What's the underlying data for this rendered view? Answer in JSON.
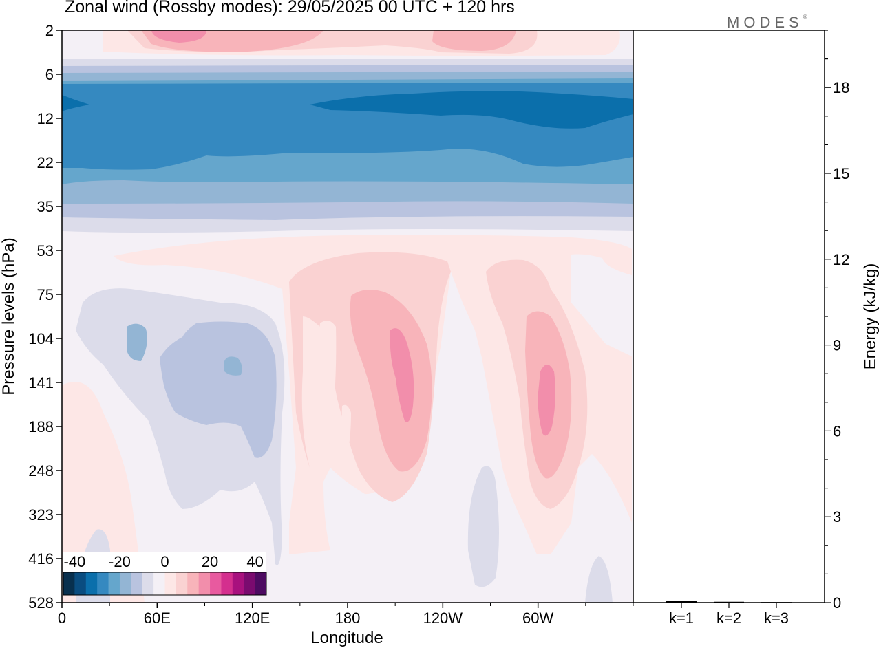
{
  "title": "Zonal wind (Rossby modes):  29/05/2025  00 UTC  + 120 hrs",
  "brand": "MODES",
  "colors": {
    "scale": [
      "#08304e",
      "#0a4d80",
      "#0b6fab",
      "#3589c0",
      "#65a6cc",
      "#93b5d4",
      "#b9c3df",
      "#dcdcea",
      "#f4f0f6",
      "#fde7e6",
      "#fad2d2",
      "#f8b4ba",
      "#f28eab",
      "#e85a9f",
      "#d42f8e",
      "#a8117e",
      "#7a0b6f",
      "#4d0b61"
    ],
    "background": "#f4f0f6"
  },
  "chart_data": [
    {
      "type": "heatmap",
      "title": "Zonal wind (Rossby modes):  29/05/2025  00 UTC  + 120 hrs",
      "xlabel": "Longitude",
      "ylabel": "Pressure levels (hPa)",
      "x_ticks": [
        "0",
        "60E",
        "120E",
        "180",
        "120W",
        "60W"
      ],
      "y_ticks": [
        "2",
        "6",
        "12",
        "22",
        "35",
        "53",
        "75",
        "104",
        "141",
        "188",
        "248",
        "323",
        "416",
        "528"
      ],
      "colorbar": {
        "ticks": [
          "-40",
          "-20",
          "0",
          "20",
          "40"
        ],
        "range": [
          -45,
          45
        ],
        "step": 5
      },
      "features": [
        {
          "level": "2",
          "description": "weak easterly/westerly near top",
          "value_range": [
            5,
            20
          ]
        },
        {
          "level": "6-35",
          "description": "strong negative zonal wind band",
          "value_range": [
            -40,
            -5
          ]
        },
        {
          "level": "75-248",
          "description": "positive cores near 160W and 60W",
          "value_range": [
            10,
            25
          ]
        },
        {
          "level": "75-323",
          "description": "weak negative region 20E-130E",
          "value_range": [
            -15,
            -5
          ]
        }
      ]
    },
    {
      "type": "bar",
      "ylabel": "Energy (kJ/kg)",
      "categories": [
        "k=1",
        "k=2",
        "k=3"
      ],
      "values": [
        0.05,
        0.03,
        0.02
      ],
      "ylim": [
        0,
        20
      ],
      "y_ticks": [
        "0",
        "3",
        "6",
        "9",
        "12",
        "15",
        "18"
      ]
    }
  ]
}
